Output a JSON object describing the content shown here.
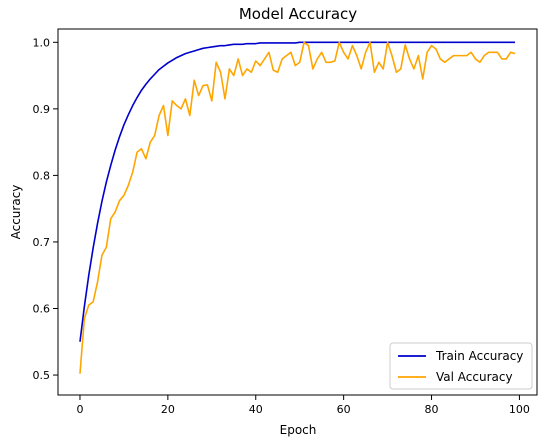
{
  "chart_data": {
    "type": "line",
    "title": "Model Accuracy",
    "xlabel": "Epoch",
    "ylabel": "Accuracy",
    "xlim": [
      -5,
      104
    ],
    "ylim": [
      0.47,
      1.02
    ],
    "xticks": [
      0,
      20,
      40,
      60,
      80,
      100
    ],
    "yticks": [
      0.5,
      0.6,
      0.7,
      0.8,
      0.9,
      1.0
    ],
    "xtick_labels": [
      "0",
      "20",
      "40",
      "60",
      "80",
      "100"
    ],
    "ytick_labels": [
      "0.5",
      "0.6",
      "0.7",
      "0.8",
      "0.9",
      "1.0"
    ],
    "grid": false,
    "legend_position": "lower-right",
    "series": [
      {
        "name": "Train Accuracy",
        "color": "#0000cd",
        "x": [
          0,
          1,
          2,
          3,
          4,
          5,
          6,
          7,
          8,
          9,
          10,
          11,
          12,
          13,
          14,
          15,
          16,
          17,
          18,
          19,
          20,
          21,
          22,
          23,
          24,
          25,
          26,
          27,
          28,
          29,
          30,
          31,
          32,
          33,
          34,
          35,
          36,
          37,
          38,
          39,
          40,
          41,
          42,
          43,
          44,
          45,
          46,
          47,
          48,
          49,
          50,
          51,
          52,
          53,
          54,
          55,
          56,
          57,
          58,
          59,
          60,
          61,
          62,
          63,
          64,
          65,
          66,
          67,
          68,
          69,
          70,
          71,
          72,
          73,
          74,
          75,
          76,
          77,
          78,
          79,
          80,
          81,
          82,
          83,
          84,
          85,
          86,
          87,
          88,
          89,
          90,
          91,
          92,
          93,
          94,
          95,
          96,
          97,
          98,
          99
        ],
        "values": [
          0.55,
          0.603,
          0.65,
          0.691,
          0.728,
          0.761,
          0.79,
          0.815,
          0.838,
          0.858,
          0.876,
          0.891,
          0.905,
          0.917,
          0.928,
          0.937,
          0.945,
          0.952,
          0.959,
          0.964,
          0.969,
          0.973,
          0.977,
          0.98,
          0.983,
          0.985,
          0.987,
          0.989,
          0.991,
          0.992,
          0.993,
          0.994,
          0.995,
          0.995,
          0.996,
          0.997,
          0.997,
          0.997,
          0.998,
          0.998,
          0.998,
          0.999,
          0.999,
          0.999,
          0.999,
          0.999,
          0.999,
          0.999,
          0.999,
          0.999,
          1.0,
          1.0,
          1.0,
          1.0,
          1.0,
          1.0,
          1.0,
          1.0,
          1.0,
          1.0,
          1.0,
          1.0,
          1.0,
          1.0,
          1.0,
          1.0,
          1.0,
          1.0,
          1.0,
          1.0,
          1.0,
          1.0,
          1.0,
          1.0,
          1.0,
          1.0,
          1.0,
          1.0,
          1.0,
          1.0,
          1.0,
          1.0,
          1.0,
          1.0,
          1.0,
          1.0,
          1.0,
          1.0,
          1.0,
          1.0,
          1.0,
          1.0,
          1.0,
          1.0,
          1.0,
          1.0,
          1.0,
          1.0,
          1.0,
          1.0
        ]
      },
      {
        "name": "Val Accuracy",
        "color": "#ffa500",
        "x": [
          0,
          1,
          2,
          3,
          4,
          5,
          6,
          7,
          8,
          9,
          10,
          11,
          12,
          13,
          14,
          15,
          16,
          17,
          18,
          19,
          20,
          21,
          22,
          23,
          24,
          25,
          26,
          27,
          28,
          29,
          30,
          31,
          32,
          33,
          34,
          35,
          36,
          37,
          38,
          39,
          40,
          41,
          42,
          43,
          44,
          45,
          46,
          47,
          48,
          49,
          50,
          51,
          52,
          53,
          54,
          55,
          56,
          57,
          58,
          59,
          60,
          61,
          62,
          63,
          64,
          65,
          66,
          67,
          68,
          69,
          70,
          71,
          72,
          73,
          74,
          75,
          76,
          77,
          78,
          79,
          80,
          81,
          82,
          83,
          84,
          85,
          86,
          87,
          88,
          89,
          90,
          91,
          92,
          93,
          94,
          95,
          96,
          97,
          98,
          99
        ],
        "values": [
          0.502,
          0.585,
          0.605,
          0.61,
          0.64,
          0.68,
          0.692,
          0.735,
          0.745,
          0.762,
          0.77,
          0.785,
          0.805,
          0.835,
          0.84,
          0.825,
          0.85,
          0.86,
          0.89,
          0.905,
          0.86,
          0.912,
          0.905,
          0.9,
          0.915,
          0.89,
          0.943,
          0.92,
          0.935,
          0.936,
          0.912,
          0.97,
          0.955,
          0.915,
          0.96,
          0.95,
          0.975,
          0.95,
          0.96,
          0.955,
          0.972,
          0.965,
          0.975,
          0.985,
          0.958,
          0.955,
          0.975,
          0.98,
          0.985,
          0.965,
          0.97,
          1.0,
          0.995,
          0.96,
          0.975,
          0.985,
          0.97,
          0.97,
          0.972,
          1.0,
          0.985,
          0.975,
          0.995,
          0.98,
          0.96,
          0.985,
          1.0,
          0.955,
          0.97,
          0.96,
          1.0,
          0.98,
          0.955,
          0.96,
          0.996,
          0.975,
          0.96,
          0.98,
          0.945,
          0.985,
          0.995,
          0.99,
          0.975,
          0.97,
          0.975,
          0.98,
          0.98,
          0.98,
          0.98,
          0.985,
          0.975,
          0.97,
          0.98,
          0.985,
          0.985,
          0.985,
          0.975,
          0.975,
          0.985,
          0.983
        ]
      }
    ]
  }
}
